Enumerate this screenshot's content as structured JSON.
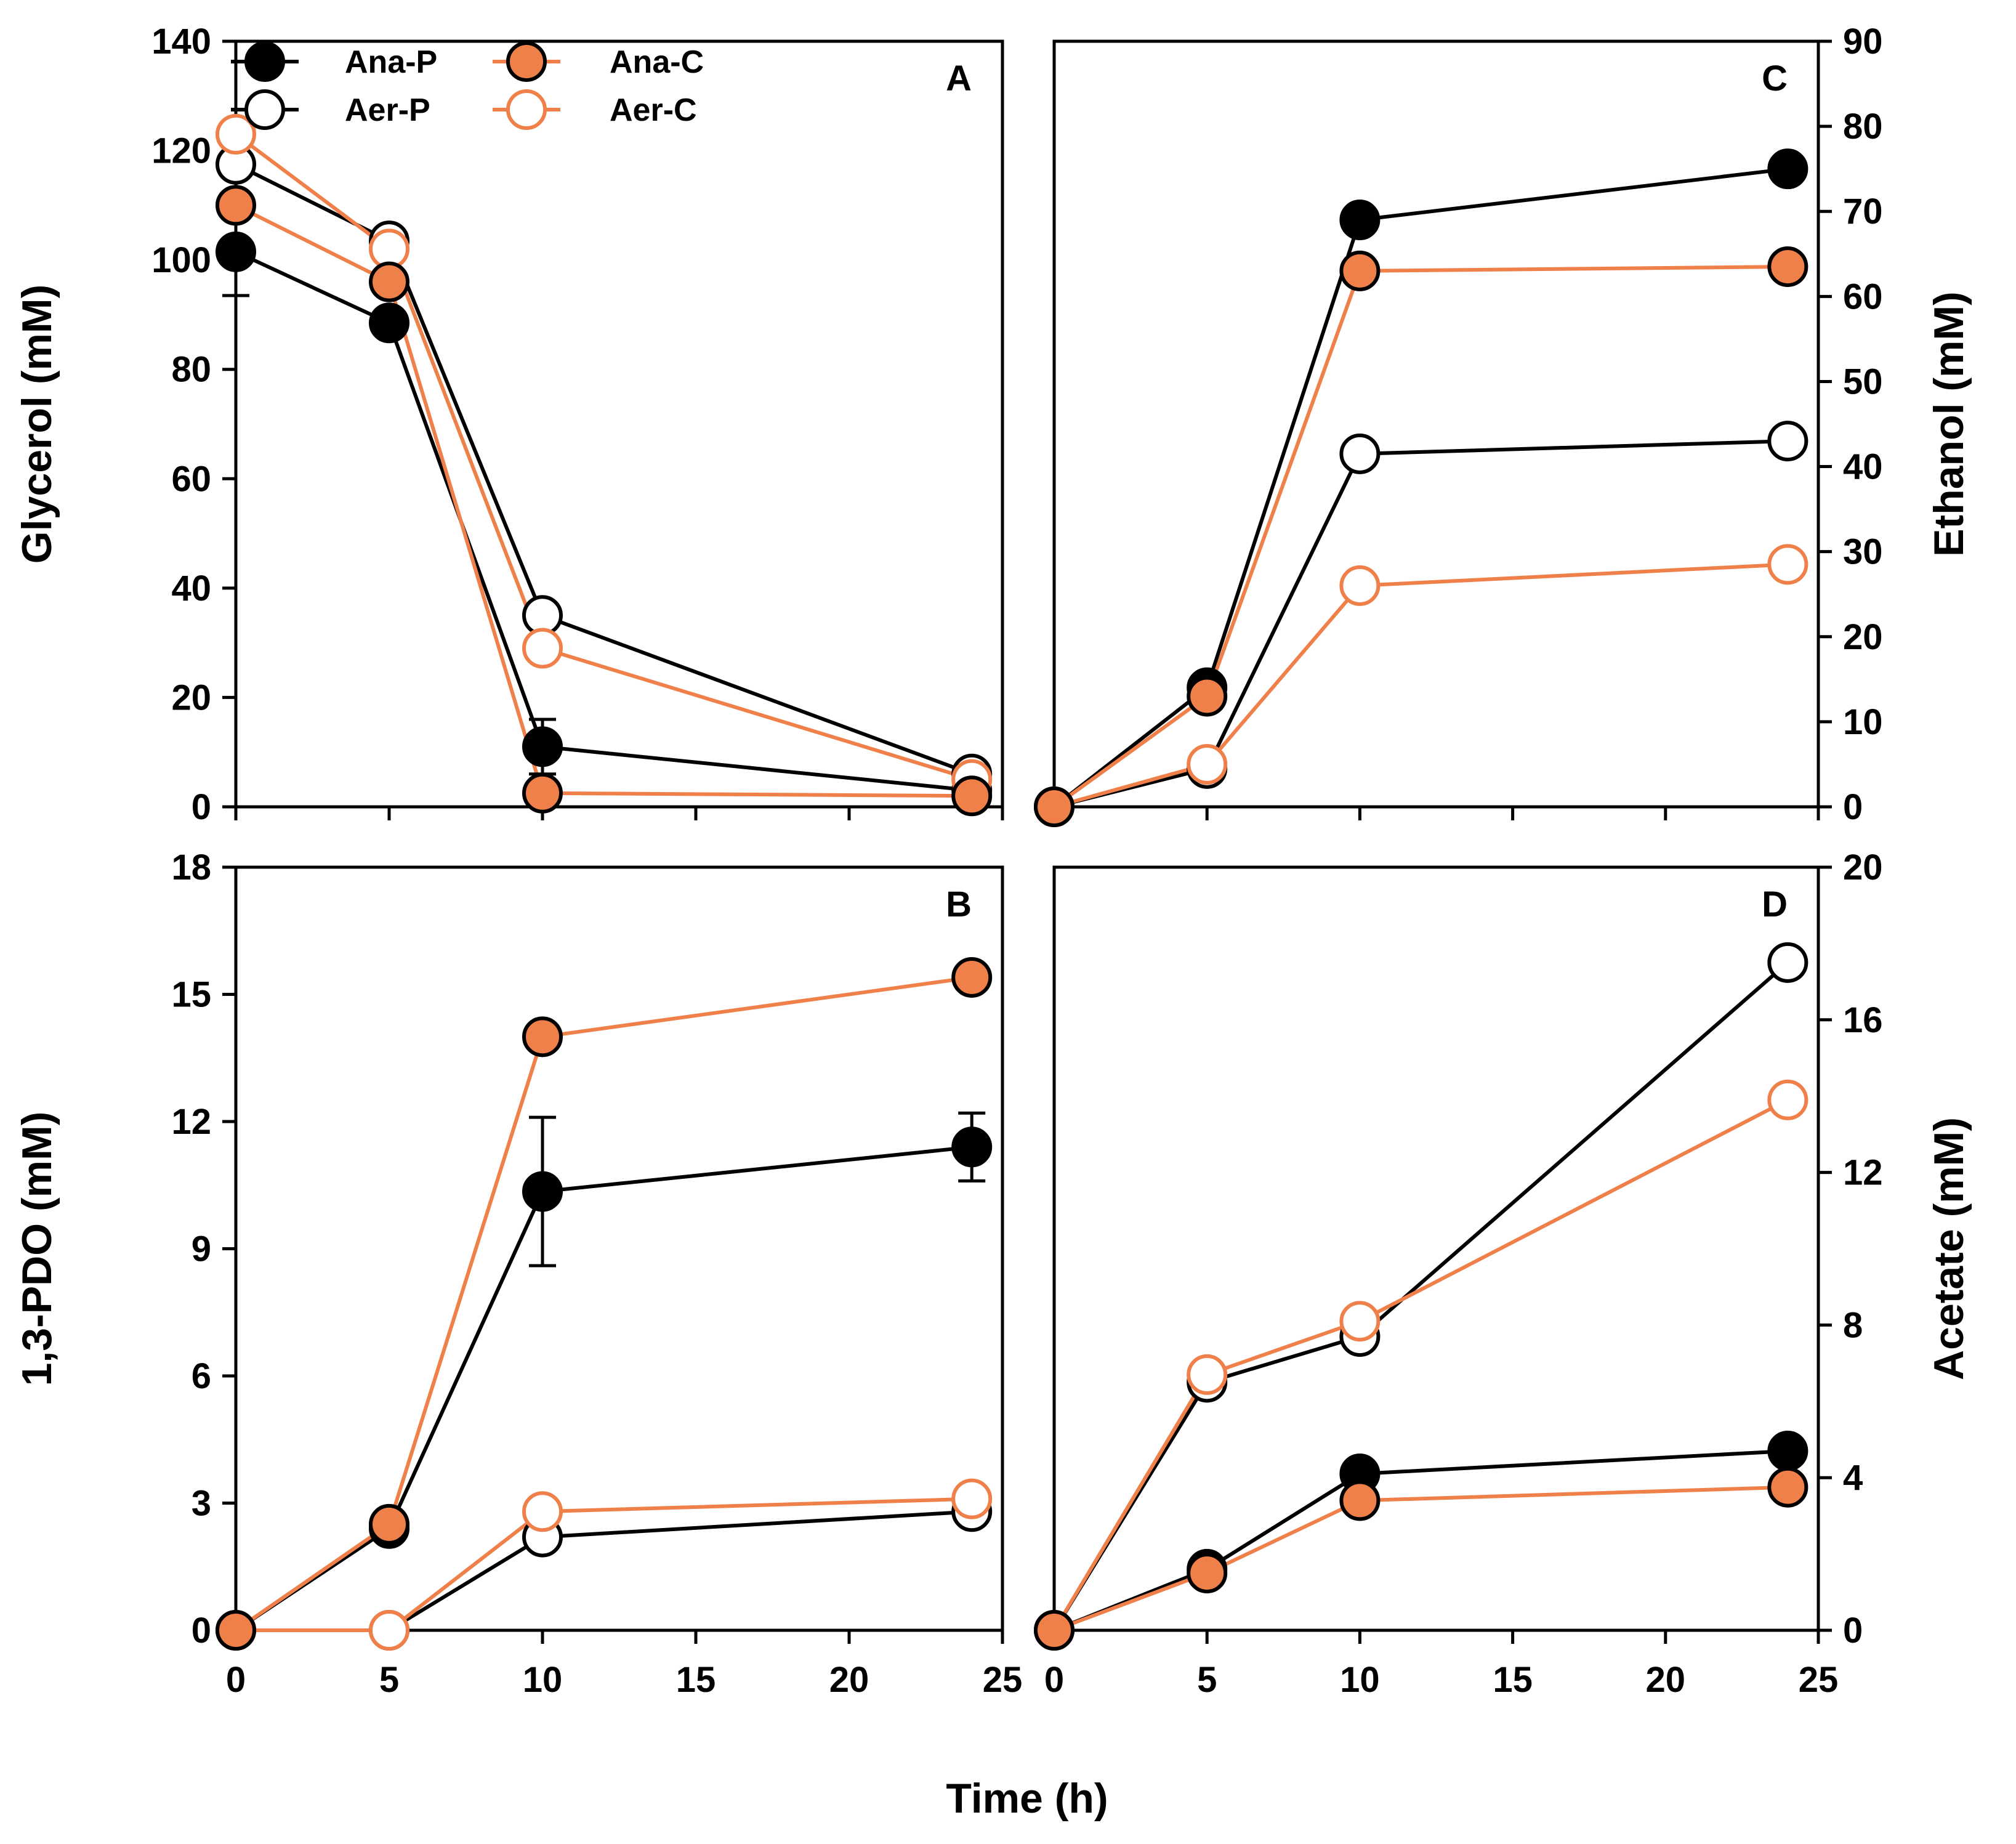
{
  "figure": {
    "xlabel": "Time (h)",
    "colors": {
      "black": "#000000",
      "orange": "#F0804A",
      "white": "#ffffff"
    }
  },
  "legend": [
    {
      "label": "Ana-P",
      "color": "#000000",
      "filled": true
    },
    {
      "label": "Aer-P",
      "color": "#000000",
      "filled": false
    },
    {
      "label": "Ana-C",
      "color": "#F0804A",
      "filled": true
    },
    {
      "label": "Aer-C",
      "color": "#F0804A",
      "filled": false
    }
  ],
  "chart_data": [
    {
      "id": "A",
      "letter": "A",
      "type": "line",
      "ylabel": "Glycerol (mM)",
      "yaxis_side": "left",
      "ylim": [
        0,
        140
      ],
      "yticks": [
        0,
        20,
        40,
        60,
        80,
        100,
        120,
        140
      ],
      "xlim": [
        0,
        25
      ],
      "xticks": [
        0,
        5,
        10,
        15,
        20,
        25
      ],
      "xtick_labels_shown": false,
      "x": [
        0,
        5,
        10,
        24
      ],
      "series": [
        {
          "name": "Ana-P",
          "values": [
            101.5,
            88.5,
            11,
            3
          ],
          "errors": [
            8,
            0,
            5,
            0
          ]
        },
        {
          "name": "Aer-P",
          "values": [
            117.5,
            103.5,
            35,
            6
          ],
          "errors": [
            0,
            0,
            0,
            0
          ]
        },
        {
          "name": "Ana-C",
          "values": [
            110,
            96,
            2.5,
            2
          ],
          "errors": [
            0,
            0,
            0,
            0
          ]
        },
        {
          "name": "Aer-C",
          "values": [
            123,
            102,
            29,
            5
          ],
          "errors": [
            0,
            0,
            0,
            0
          ]
        }
      ]
    },
    {
      "id": "B",
      "letter": "B",
      "type": "line",
      "ylabel": "1,3-PDO (mM)",
      "yaxis_side": "left",
      "ylim": [
        0,
        18
      ],
      "yticks": [
        0,
        3,
        6,
        9,
        12,
        15,
        18
      ],
      "xlim": [
        0,
        25
      ],
      "xticks": [
        0,
        5,
        10,
        15,
        20,
        25
      ],
      "xtick_labels_shown": true,
      "x": [
        0,
        5,
        10,
        24
      ],
      "series": [
        {
          "name": "Ana-P",
          "values": [
            0,
            2.4,
            10.35,
            11.4
          ],
          "errors": [
            0,
            0,
            1.75,
            0.8
          ]
        },
        {
          "name": "Aer-P",
          "values": [
            0,
            0,
            2.2,
            2.8
          ],
          "errors": [
            0,
            0,
            0,
            0
          ]
        },
        {
          "name": "Ana-C",
          "values": [
            0,
            2.5,
            14,
            15.4
          ],
          "errors": [
            0,
            0,
            0,
            0
          ]
        },
        {
          "name": "Aer-C",
          "values": [
            0,
            0,
            2.8,
            3.1
          ],
          "errors": [
            0,
            0,
            0,
            0
          ]
        }
      ]
    },
    {
      "id": "C",
      "letter": "C",
      "type": "line",
      "ylabel": "Ethanol (mM)",
      "yaxis_side": "right",
      "ylim": [
        0,
        90
      ],
      "yticks": [
        0,
        10,
        20,
        30,
        40,
        50,
        60,
        70,
        80,
        90
      ],
      "xlim": [
        0,
        25
      ],
      "xticks": [
        0,
        5,
        10,
        15,
        20,
        25
      ],
      "xtick_labels_shown": false,
      "x": [
        0,
        5,
        10,
        24
      ],
      "series": [
        {
          "name": "Ana-P",
          "values": [
            0,
            14,
            69,
            75
          ],
          "errors": [
            0,
            0,
            1,
            0.5
          ]
        },
        {
          "name": "Aer-P",
          "values": [
            0,
            4.5,
            41.5,
            43
          ],
          "errors": [
            0,
            0,
            0,
            0
          ]
        },
        {
          "name": "Ana-C",
          "values": [
            0,
            13,
            63,
            63.5
          ],
          "errors": [
            0,
            0,
            0,
            0
          ]
        },
        {
          "name": "Aer-C",
          "values": [
            0,
            5,
            26,
            28.5
          ],
          "errors": [
            0,
            0,
            0,
            0
          ]
        }
      ]
    },
    {
      "id": "D",
      "letter": "D",
      "type": "line",
      "ylabel": "Acetate (mM)",
      "yaxis_side": "right",
      "ylim": [
        0,
        20
      ],
      "yticks": [
        0,
        4,
        8,
        12,
        16,
        20
      ],
      "xlim": [
        0,
        25
      ],
      "xticks": [
        0,
        5,
        10,
        15,
        20,
        25
      ],
      "xtick_labels_shown": true,
      "x": [
        0,
        5,
        10,
        24
      ],
      "series": [
        {
          "name": "Ana-P",
          "values": [
            0,
            1.6,
            4.1,
            4.7
          ],
          "errors": [
            0,
            0,
            0.2,
            0.2
          ]
        },
        {
          "name": "Aer-P",
          "values": [
            0,
            6.5,
            7.7,
            17.5
          ],
          "errors": [
            0,
            0,
            0,
            0
          ]
        },
        {
          "name": "Ana-C",
          "values": [
            0,
            1.5,
            3.4,
            3.75
          ],
          "errors": [
            0,
            0,
            0,
            0
          ]
        },
        {
          "name": "Aer-C",
          "values": [
            0,
            6.7,
            8.1,
            13.9
          ],
          "errors": [
            0,
            0,
            0,
            0
          ]
        }
      ]
    }
  ]
}
